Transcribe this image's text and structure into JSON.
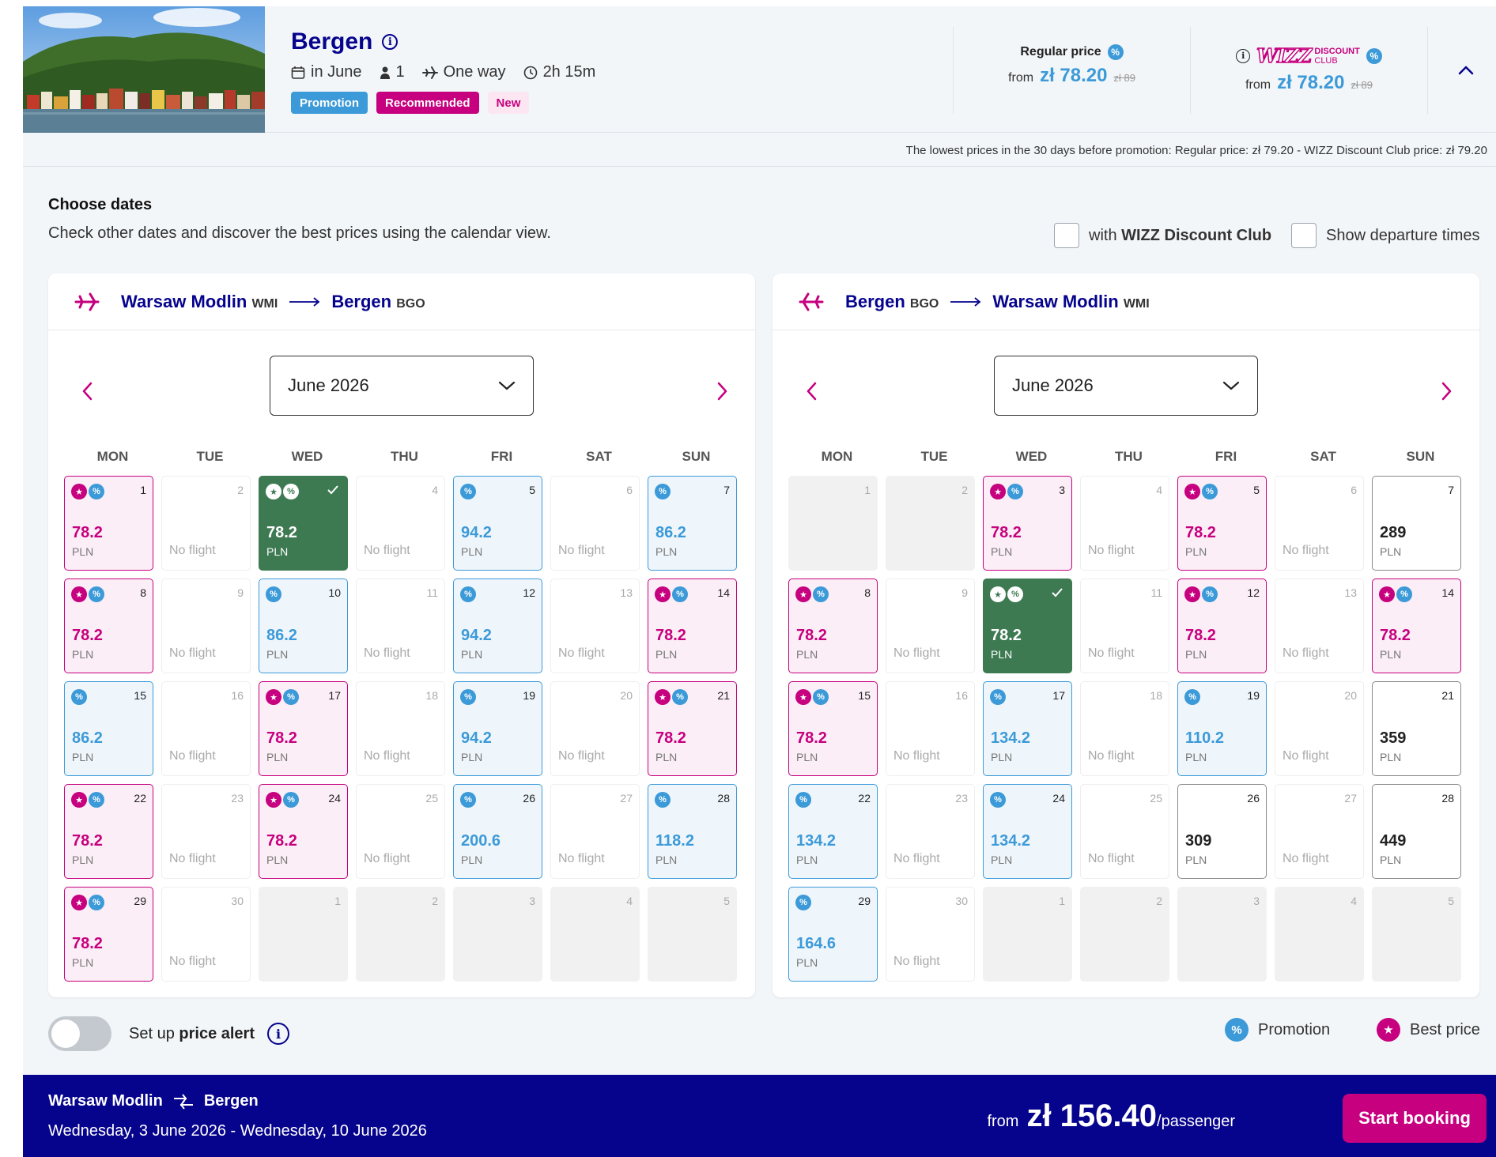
{
  "header": {
    "destination": "Bergen",
    "month": "in June",
    "passengers": "1",
    "trip_type": "One way",
    "duration": "2h 15m",
    "badges": [
      "Promotion",
      "Recommended",
      "New"
    ],
    "regular": {
      "label": "Regular price",
      "from": "from",
      "price": "zł 78.20",
      "old": "zł 89"
    },
    "club": {
      "logo": "WIZZ",
      "logo_sub1": "DISCOUNT",
      "logo_sub2": "CLUB",
      "from": "from",
      "price": "zł 78.20",
      "old": "zł 89"
    },
    "lowest_note": "The lowest prices in the 30 days before promotion:  Regular price: zł 79.20 - WIZZ Discount Club price: zł 79.20"
  },
  "choose": {
    "title": "Choose dates",
    "subtitle": "Check other dates and discover the best prices using the calendar view.",
    "club_prefix": "with ",
    "club_bold": "WIZZ Discount Club",
    "show_times": "Show departure times"
  },
  "weekdays": [
    "MON",
    "TUE",
    "WED",
    "THU",
    "FRI",
    "SAT",
    "SUN"
  ],
  "outbound": {
    "from": "Warsaw Modlin",
    "from_code": "WMI",
    "to": "Bergen",
    "to_code": "BGO",
    "month": "June 2026",
    "cells": [
      {
        "d": "1",
        "t": "best",
        "p": "78.2"
      },
      {
        "d": "2",
        "t": "nf"
      },
      {
        "d": "3",
        "t": "sel",
        "p": "78.2"
      },
      {
        "d": "4",
        "t": "nf"
      },
      {
        "d": "5",
        "t": "promo",
        "p": "94.2"
      },
      {
        "d": "6",
        "t": "nf"
      },
      {
        "d": "7",
        "t": "promo",
        "p": "86.2"
      },
      {
        "d": "8",
        "t": "best",
        "p": "78.2"
      },
      {
        "d": "9",
        "t": "nf"
      },
      {
        "d": "10",
        "t": "promo",
        "p": "86.2"
      },
      {
        "d": "11",
        "t": "nf"
      },
      {
        "d": "12",
        "t": "promo",
        "p": "94.2"
      },
      {
        "d": "13",
        "t": "nf"
      },
      {
        "d": "14",
        "t": "best",
        "p": "78.2"
      },
      {
        "d": "15",
        "t": "promo",
        "p": "86.2"
      },
      {
        "d": "16",
        "t": "nf"
      },
      {
        "d": "17",
        "t": "best",
        "p": "78.2"
      },
      {
        "d": "18",
        "t": "nf"
      },
      {
        "d": "19",
        "t": "promo",
        "p": "94.2"
      },
      {
        "d": "20",
        "t": "nf"
      },
      {
        "d": "21",
        "t": "best",
        "p": "78.2"
      },
      {
        "d": "22",
        "t": "best",
        "p": "78.2"
      },
      {
        "d": "23",
        "t": "nf"
      },
      {
        "d": "24",
        "t": "best",
        "p": "78.2"
      },
      {
        "d": "25",
        "t": "nf"
      },
      {
        "d": "26",
        "t": "promo",
        "p": "200.6"
      },
      {
        "d": "27",
        "t": "nf"
      },
      {
        "d": "28",
        "t": "promo",
        "p": "118.2"
      },
      {
        "d": "29",
        "t": "best",
        "p": "78.2"
      },
      {
        "d": "30",
        "t": "nf"
      },
      {
        "d": "1",
        "t": "dis"
      },
      {
        "d": "2",
        "t": "dis"
      },
      {
        "d": "3",
        "t": "dis"
      },
      {
        "d": "4",
        "t": "dis"
      },
      {
        "d": "5",
        "t": "dis"
      }
    ]
  },
  "inbound": {
    "from": "Bergen",
    "from_code": "BGO",
    "to": "Warsaw Modlin",
    "to_code": "WMI",
    "month": "June 2026",
    "cells": [
      {
        "d": "1",
        "t": "dis"
      },
      {
        "d": "2",
        "t": "dis"
      },
      {
        "d": "3",
        "t": "best",
        "p": "78.2"
      },
      {
        "d": "4",
        "t": "nf"
      },
      {
        "d": "5",
        "t": "best",
        "p": "78.2"
      },
      {
        "d": "6",
        "t": "nf"
      },
      {
        "d": "7",
        "t": "reg",
        "p": "289"
      },
      {
        "d": "8",
        "t": "best",
        "p": "78.2"
      },
      {
        "d": "9",
        "t": "nf"
      },
      {
        "d": "10",
        "t": "sel",
        "p": "78.2"
      },
      {
        "d": "11",
        "t": "nf"
      },
      {
        "d": "12",
        "t": "best",
        "p": "78.2"
      },
      {
        "d": "13",
        "t": "nf"
      },
      {
        "d": "14",
        "t": "best",
        "p": "78.2"
      },
      {
        "d": "15",
        "t": "best",
        "p": "78.2"
      },
      {
        "d": "16",
        "t": "nf"
      },
      {
        "d": "17",
        "t": "promo",
        "p": "134.2"
      },
      {
        "d": "18",
        "t": "nf"
      },
      {
        "d": "19",
        "t": "promo",
        "p": "110.2"
      },
      {
        "d": "20",
        "t": "nf"
      },
      {
        "d": "21",
        "t": "reg",
        "p": "359"
      },
      {
        "d": "22",
        "t": "promo",
        "p": "134.2"
      },
      {
        "d": "23",
        "t": "nf"
      },
      {
        "d": "24",
        "t": "promo",
        "p": "134.2"
      },
      {
        "d": "25",
        "t": "nf"
      },
      {
        "d": "26",
        "t": "reg",
        "p": "309"
      },
      {
        "d": "27",
        "t": "nf"
      },
      {
        "d": "28",
        "t": "reg",
        "p": "449"
      },
      {
        "d": "29",
        "t": "promo",
        "p": "164.6"
      },
      {
        "d": "30",
        "t": "nf"
      },
      {
        "d": "1",
        "t": "dis"
      },
      {
        "d": "2",
        "t": "dis"
      },
      {
        "d": "3",
        "t": "dis"
      },
      {
        "d": "4",
        "t": "dis"
      },
      {
        "d": "5",
        "t": "dis"
      }
    ]
  },
  "labels": {
    "no_flight": "No flight",
    "currency": "PLN",
    "pct_glyph": "%",
    "star_glyph": "★"
  },
  "alert": {
    "prefix": "Set up ",
    "bold": "price alert"
  },
  "legend": {
    "promotion": "Promotion",
    "best": "Best price"
  },
  "footer": {
    "from": "Warsaw Modlin",
    "to": "Bergen",
    "dates": "Wednesday, 3 June 2026 - Wednesday, 10 June 2026",
    "from_label": "from",
    "price": "zł 156.40",
    "per": "/passenger",
    "cta": "Start booking"
  },
  "colors": {
    "navy": "#06038d",
    "magenta": "#c6007e",
    "promo_blue": "#3c9ad8",
    "selected_green": "#3d7a52"
  }
}
